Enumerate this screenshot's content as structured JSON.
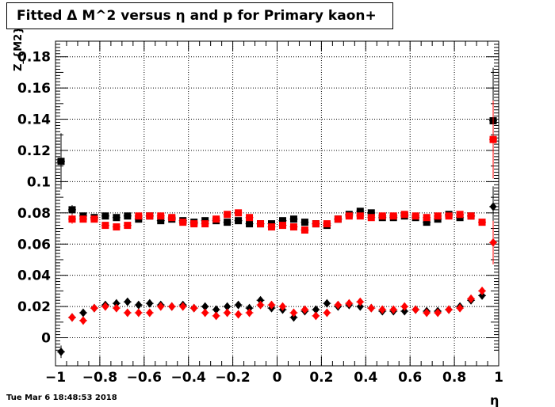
{
  "window": {
    "timestamp": "Tue Mar  6 18:48:53 2018"
  },
  "chart_data": {
    "type": "scatter",
    "title": "Fitted Δ M^2 versus η and p for Primary kaon+",
    "xlabel": "η",
    "ylabel": "Z_{M2}",
    "xlim": [
      -1,
      1
    ],
    "ylim": [
      -0.018,
      0.19
    ],
    "grid": true,
    "x_ticks": [
      -1,
      -0.8,
      -0.6,
      -0.4,
      -0.2,
      0,
      0.2,
      0.4,
      0.6,
      0.8,
      1
    ],
    "x_tick_labels": [
      "−1",
      "−0.8",
      "−0.6",
      "−0.4",
      "−0.2",
      "0",
      "0.2",
      "0.4",
      "0.6",
      "0.8",
      "1"
    ],
    "y_ticks": [
      0,
      0.02,
      0.04,
      0.06,
      0.08,
      0.1,
      0.12,
      0.14,
      0.16,
      0.18
    ],
    "y_tick_labels": [
      "0",
      "0.02",
      "0.04",
      "0.06",
      "0.08",
      "0.1",
      "0.12",
      "0.14",
      "0.16",
      "0.18"
    ],
    "series": [
      {
        "marker": "square",
        "color": "#000000",
        "points": [
          {
            "x": -0.975,
            "y": 0.113,
            "err": 0.018
          },
          {
            "x": -0.925,
            "y": 0.082,
            "err": 0.003
          },
          {
            "x": -0.875,
            "y": 0.078
          },
          {
            "x": -0.825,
            "y": 0.077
          },
          {
            "x": -0.775,
            "y": 0.078
          },
          {
            "x": -0.725,
            "y": 0.077
          },
          {
            "x": -0.675,
            "y": 0.078
          },
          {
            "x": -0.625,
            "y": 0.076
          },
          {
            "x": -0.575,
            "y": 0.078
          },
          {
            "x": -0.525,
            "y": 0.075
          },
          {
            "x": -0.475,
            "y": 0.076
          },
          {
            "x": -0.425,
            "y": 0.075
          },
          {
            "x": -0.375,
            "y": 0.074
          },
          {
            "x": -0.325,
            "y": 0.075
          },
          {
            "x": -0.275,
            "y": 0.075
          },
          {
            "x": -0.225,
            "y": 0.074
          },
          {
            "x": -0.175,
            "y": 0.075
          },
          {
            "x": -0.125,
            "y": 0.073
          },
          {
            "x": -0.075,
            "y": 0.073
          },
          {
            "x": -0.025,
            "y": 0.073
          },
          {
            "x": 0.025,
            "y": 0.075
          },
          {
            "x": 0.075,
            "y": 0.076
          },
          {
            "x": 0.125,
            "y": 0.074
          },
          {
            "x": 0.175,
            "y": 0.073
          },
          {
            "x": 0.225,
            "y": 0.072
          },
          {
            "x": 0.275,
            "y": 0.076
          },
          {
            "x": 0.325,
            "y": 0.079
          },
          {
            "x": 0.375,
            "y": 0.081
          },
          {
            "x": 0.425,
            "y": 0.08
          },
          {
            "x": 0.475,
            "y": 0.077
          },
          {
            "x": 0.525,
            "y": 0.077
          },
          {
            "x": 0.575,
            "y": 0.078
          },
          {
            "x": 0.625,
            "y": 0.077
          },
          {
            "x": 0.675,
            "y": 0.074
          },
          {
            "x": 0.725,
            "y": 0.076
          },
          {
            "x": 0.775,
            "y": 0.079
          },
          {
            "x": 0.825,
            "y": 0.077
          },
          {
            "x": 0.875,
            "y": 0.078
          },
          {
            "x": 0.975,
            "y": 0.139,
            "err": 0.034
          }
        ]
      },
      {
        "marker": "square",
        "color": "#ff0000",
        "points": [
          {
            "x": -0.925,
            "y": 0.076,
            "err": 0.003
          },
          {
            "x": -0.875,
            "y": 0.076
          },
          {
            "x": -0.825,
            "y": 0.076
          },
          {
            "x": -0.775,
            "y": 0.072
          },
          {
            "x": -0.725,
            "y": 0.071
          },
          {
            "x": -0.675,
            "y": 0.072
          },
          {
            "x": -0.625,
            "y": 0.078
          },
          {
            "x": -0.575,
            "y": 0.078
          },
          {
            "x": -0.525,
            "y": 0.078
          },
          {
            "x": -0.475,
            "y": 0.077
          },
          {
            "x": -0.425,
            "y": 0.074
          },
          {
            "x": -0.375,
            "y": 0.073
          },
          {
            "x": -0.325,
            "y": 0.073
          },
          {
            "x": -0.275,
            "y": 0.076
          },
          {
            "x": -0.225,
            "y": 0.079
          },
          {
            "x": -0.175,
            "y": 0.08
          },
          {
            "x": -0.125,
            "y": 0.077
          },
          {
            "x": -0.075,
            "y": 0.073
          },
          {
            "x": -0.025,
            "y": 0.071
          },
          {
            "x": 0.025,
            "y": 0.072
          },
          {
            "x": 0.075,
            "y": 0.071
          },
          {
            "x": 0.125,
            "y": 0.069
          },
          {
            "x": 0.175,
            "y": 0.073
          },
          {
            "x": 0.225,
            "y": 0.073
          },
          {
            "x": 0.275,
            "y": 0.076
          },
          {
            "x": 0.325,
            "y": 0.078
          },
          {
            "x": 0.375,
            "y": 0.078
          },
          {
            "x": 0.425,
            "y": 0.077
          },
          {
            "x": 0.475,
            "y": 0.078
          },
          {
            "x": 0.525,
            "y": 0.078
          },
          {
            "x": 0.575,
            "y": 0.079
          },
          {
            "x": 0.625,
            "y": 0.078
          },
          {
            "x": 0.675,
            "y": 0.077
          },
          {
            "x": 0.725,
            "y": 0.078
          },
          {
            "x": 0.775,
            "y": 0.078
          },
          {
            "x": 0.825,
            "y": 0.079
          },
          {
            "x": 0.875,
            "y": 0.078
          },
          {
            "x": 0.925,
            "y": 0.074
          },
          {
            "x": 0.975,
            "y": 0.127,
            "err": 0.025
          }
        ]
      },
      {
        "marker": "diamond",
        "color": "#000000",
        "points": [
          {
            "x": -0.975,
            "y": -0.009,
            "err": 0.004
          },
          {
            "x": -0.925,
            "y": 0.013
          },
          {
            "x": -0.875,
            "y": 0.016
          },
          {
            "x": -0.825,
            "y": 0.019
          },
          {
            "x": -0.775,
            "y": 0.021
          },
          {
            "x": -0.725,
            "y": 0.022
          },
          {
            "x": -0.675,
            "y": 0.023
          },
          {
            "x": -0.625,
            "y": 0.021
          },
          {
            "x": -0.575,
            "y": 0.022
          },
          {
            "x": -0.525,
            "y": 0.021
          },
          {
            "x": -0.475,
            "y": 0.02
          },
          {
            "x": -0.425,
            "y": 0.021
          },
          {
            "x": -0.375,
            "y": 0.019
          },
          {
            "x": -0.325,
            "y": 0.02
          },
          {
            "x": -0.275,
            "y": 0.018
          },
          {
            "x": -0.225,
            "y": 0.02
          },
          {
            "x": -0.175,
            "y": 0.021
          },
          {
            "x": -0.125,
            "y": 0.019
          },
          {
            "x": -0.075,
            "y": 0.024
          },
          {
            "x": -0.025,
            "y": 0.019
          },
          {
            "x": 0.025,
            "y": 0.018
          },
          {
            "x": 0.075,
            "y": 0.013
          },
          {
            "x": 0.125,
            "y": 0.017
          },
          {
            "x": 0.175,
            "y": 0.018
          },
          {
            "x": 0.225,
            "y": 0.022
          },
          {
            "x": 0.275,
            "y": 0.02
          },
          {
            "x": 0.325,
            "y": 0.021
          },
          {
            "x": 0.375,
            "y": 0.02
          },
          {
            "x": 0.425,
            "y": 0.019
          },
          {
            "x": 0.475,
            "y": 0.017
          },
          {
            "x": 0.525,
            "y": 0.017
          },
          {
            "x": 0.575,
            "y": 0.017
          },
          {
            "x": 0.625,
            "y": 0.018
          },
          {
            "x": 0.675,
            "y": 0.017
          },
          {
            "x": 0.725,
            "y": 0.017
          },
          {
            "x": 0.775,
            "y": 0.018
          },
          {
            "x": 0.825,
            "y": 0.02
          },
          {
            "x": 0.875,
            "y": 0.024
          },
          {
            "x": 0.925,
            "y": 0.027
          },
          {
            "x": 0.975,
            "y": 0.084,
            "err": 0.013
          }
        ]
      },
      {
        "marker": "diamond",
        "color": "#ff0000",
        "points": [
          {
            "x": -0.925,
            "y": 0.013
          },
          {
            "x": -0.875,
            "y": 0.011
          },
          {
            "x": -0.825,
            "y": 0.019
          },
          {
            "x": -0.775,
            "y": 0.02
          },
          {
            "x": -0.725,
            "y": 0.019
          },
          {
            "x": -0.675,
            "y": 0.016
          },
          {
            "x": -0.625,
            "y": 0.016
          },
          {
            "x": -0.575,
            "y": 0.016
          },
          {
            "x": -0.525,
            "y": 0.02
          },
          {
            "x": -0.475,
            "y": 0.02
          },
          {
            "x": -0.425,
            "y": 0.02
          },
          {
            "x": -0.375,
            "y": 0.019
          },
          {
            "x": -0.325,
            "y": 0.016
          },
          {
            "x": -0.275,
            "y": 0.014
          },
          {
            "x": -0.225,
            "y": 0.016
          },
          {
            "x": -0.175,
            "y": 0.015
          },
          {
            "x": -0.125,
            "y": 0.016
          },
          {
            "x": -0.075,
            "y": 0.021
          },
          {
            "x": -0.025,
            "y": 0.021
          },
          {
            "x": 0.025,
            "y": 0.02
          },
          {
            "x": 0.075,
            "y": 0.016
          },
          {
            "x": 0.125,
            "y": 0.018
          },
          {
            "x": 0.175,
            "y": 0.014
          },
          {
            "x": 0.225,
            "y": 0.016
          },
          {
            "x": 0.275,
            "y": 0.021
          },
          {
            "x": 0.325,
            "y": 0.022
          },
          {
            "x": 0.375,
            "y": 0.023
          },
          {
            "x": 0.425,
            "y": 0.019
          },
          {
            "x": 0.475,
            "y": 0.018
          },
          {
            "x": 0.525,
            "y": 0.018
          },
          {
            "x": 0.575,
            "y": 0.02
          },
          {
            "x": 0.625,
            "y": 0.018
          },
          {
            "x": 0.675,
            "y": 0.016
          },
          {
            "x": 0.725,
            "y": 0.016
          },
          {
            "x": 0.775,
            "y": 0.018
          },
          {
            "x": 0.825,
            "y": 0.019
          },
          {
            "x": 0.875,
            "y": 0.025
          },
          {
            "x": 0.925,
            "y": 0.03
          },
          {
            "x": 0.975,
            "y": 0.061,
            "err": 0.014
          }
        ]
      }
    ]
  }
}
